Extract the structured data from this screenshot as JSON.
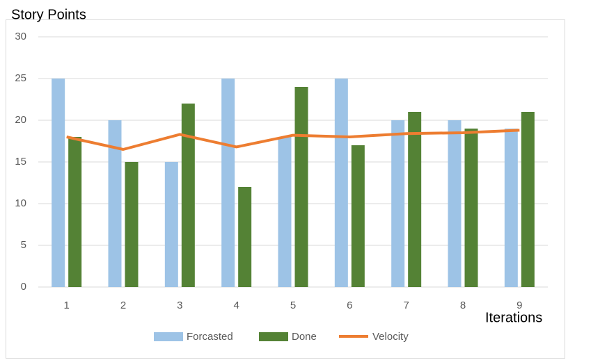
{
  "chart_data": {
    "type": "bar",
    "y_label": "Story Points",
    "x_label": "Iterations",
    "categories": [
      "1",
      "2",
      "3",
      "4",
      "5",
      "6",
      "7",
      "8",
      "9"
    ],
    "series": [
      {
        "name": "Forcasted",
        "type": "bar",
        "color": "#9dc3e6",
        "values": [
          25,
          20,
          15,
          25,
          18,
          25,
          20,
          20,
          19
        ]
      },
      {
        "name": "Done",
        "type": "bar",
        "color": "#548235",
        "values": [
          18,
          15,
          22,
          12,
          24,
          17,
          21,
          19,
          21
        ]
      },
      {
        "name": "Velocity",
        "type": "line",
        "color": "#ed7d31",
        "values": [
          18,
          16.5,
          18.3,
          16.8,
          18.2,
          18,
          18.4,
          18.5,
          18.8
        ]
      }
    ],
    "ylim": [
      0,
      30
    ],
    "yticks": [
      0,
      5,
      10,
      15,
      20,
      25,
      30
    ],
    "grid": true,
    "legend": "bottom"
  }
}
